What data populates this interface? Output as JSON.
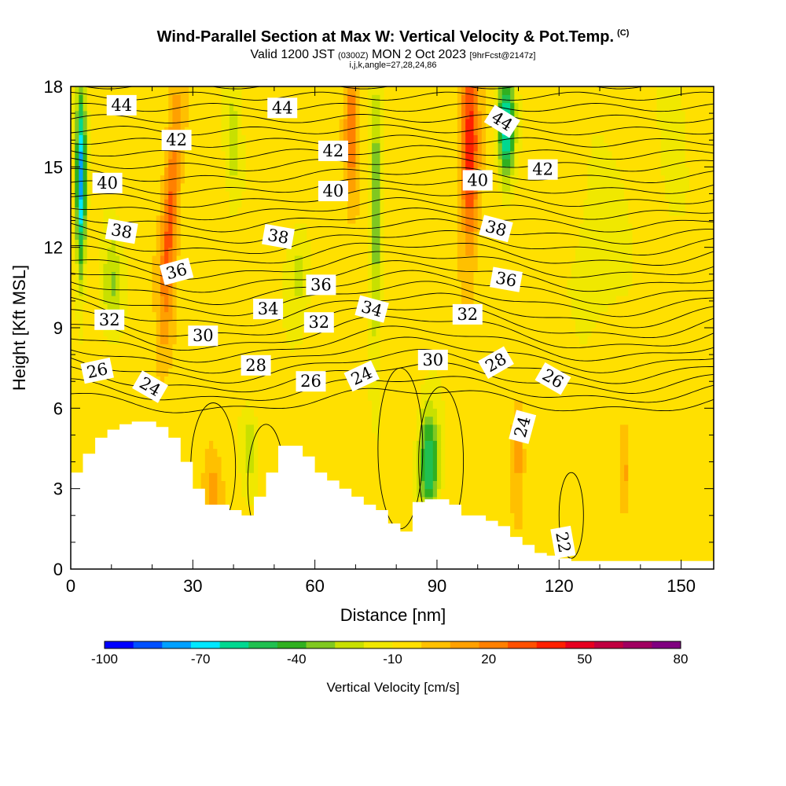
{
  "header": {
    "title": "Wind-Parallel Section at Max W: Vertical Velocity & Pot.Temp.",
    "copyright": "(C)",
    "valid_a": "Valid 1200 JST",
    "valid_b": "(0300Z)",
    "valid_c": "MON 2 Oct 2023",
    "valid_d": "[9hrFcst@2147z]",
    "grid_info": "i,j,k,angle=27,28,24,86"
  },
  "colors": {
    "frame": "#000000",
    "terrain": "#ffffff",
    "contour": "#000000"
  },
  "chart_data": {
    "type": "heatmap",
    "xlabel": "Distance [nm]",
    "ylabel": "Height [Kft MSL]",
    "xlim": [
      0,
      158
    ],
    "ylim": [
      0,
      18
    ],
    "x_ticks": [
      0,
      30,
      60,
      90,
      120,
      150
    ],
    "y_ticks": [
      0,
      3,
      6,
      9,
      12,
      15,
      18
    ],
    "colorbar": {
      "label": "Vertical Velocity [cm/s]",
      "min": -100,
      "max": 80,
      "tick_values": [
        -100,
        -70,
        -40,
        -10,
        20,
        50,
        80
      ],
      "bin_width": 10,
      "colors": [
        "#0000ff",
        "#0050ff",
        "#00a0ff",
        "#00e8ff",
        "#00d890",
        "#20c050",
        "#30b020",
        "#80c820",
        "#c8e000",
        "#f0e800",
        "#ffe000",
        "#ffc000",
        "#ffa000",
        "#ff8000",
        "#ff5000",
        "#ff2000",
        "#e80020",
        "#c00040",
        "#a00060",
        "#800080"
      ]
    },
    "terrain_profile": {
      "x": [
        0,
        3,
        6,
        9,
        12,
        15,
        18,
        21,
        24,
        27,
        30,
        33,
        36,
        39,
        42,
        45,
        48,
        51,
        54,
        57,
        60,
        63,
        66,
        69,
        72,
        75,
        78,
        81,
        84,
        87,
        90,
        93,
        96,
        99,
        102,
        105,
        108,
        111,
        114,
        117,
        120,
        123,
        126,
        129,
        132,
        158
      ],
      "y": [
        3.6,
        4.3,
        4.9,
        5.2,
        5.4,
        5.5,
        5.5,
        5.3,
        4.9,
        4.0,
        3.0,
        2.4,
        2.4,
        2.2,
        2.0,
        2.7,
        3.6,
        4.6,
        4.6,
        4.2,
        3.6,
        3.3,
        3.0,
        2.7,
        2.4,
        2.2,
        1.7,
        1.4,
        2.5,
        2.6,
        2.6,
        2.4,
        2.0,
        2.0,
        1.8,
        1.6,
        1.2,
        0.9,
        0.6,
        0.5,
        0.4,
        0.3,
        0.3,
        0.3,
        0.3,
        0.3
      ]
    },
    "theta_contour_labels": [
      {
        "text": "44",
        "x": 12.5,
        "y": 17.3,
        "angle": 0
      },
      {
        "text": "44",
        "x": 52,
        "y": 17.2,
        "angle": 0
      },
      {
        "text": "44",
        "x": 106,
        "y": 16.7,
        "angle": 32
      },
      {
        "text": "42",
        "x": 26,
        "y": 16.0,
        "angle": 0
      },
      {
        "text": "42",
        "x": 64.5,
        "y": 15.6,
        "angle": 0
      },
      {
        "text": "42",
        "x": 116,
        "y": 14.9,
        "angle": 0
      },
      {
        "text": "40",
        "x": 9,
        "y": 14.4,
        "angle": 0
      },
      {
        "text": "40",
        "x": 64.5,
        "y": 14.1,
        "angle": 0
      },
      {
        "text": "40",
        "x": 100,
        "y": 14.5,
        "angle": 0
      },
      {
        "text": "38",
        "x": 12.5,
        "y": 12.6,
        "angle": 10
      },
      {
        "text": "38",
        "x": 51,
        "y": 12.4,
        "angle": 10
      },
      {
        "text": "38",
        "x": 104.5,
        "y": 12.7,
        "angle": 15
      },
      {
        "text": "36",
        "x": 26,
        "y": 11.1,
        "angle": -15
      },
      {
        "text": "36",
        "x": 61.5,
        "y": 10.6,
        "angle": 0
      },
      {
        "text": "36",
        "x": 107,
        "y": 10.8,
        "angle": 10
      },
      {
        "text": "34",
        "x": 48.5,
        "y": 9.7,
        "angle": 0
      },
      {
        "text": "34",
        "x": 74,
        "y": 9.7,
        "angle": 15
      },
      {
        "text": "32",
        "x": 9.5,
        "y": 9.3,
        "angle": 0
      },
      {
        "text": "32",
        "x": 61,
        "y": 9.2,
        "angle": 0
      },
      {
        "text": "32",
        "x": 97.5,
        "y": 9.5,
        "angle": 0
      },
      {
        "text": "30",
        "x": 32.5,
        "y": 8.7,
        "angle": 0
      },
      {
        "text": "30",
        "x": 89,
        "y": 7.8,
        "angle": 0
      },
      {
        "text": "28",
        "x": 45.5,
        "y": 7.6,
        "angle": 0
      },
      {
        "text": "28",
        "x": 104.5,
        "y": 7.7,
        "angle": -30
      },
      {
        "text": "26",
        "x": 6.5,
        "y": 7.4,
        "angle": -12
      },
      {
        "text": "26",
        "x": 59,
        "y": 7.0,
        "angle": 0
      },
      {
        "text": "26",
        "x": 118.5,
        "y": 7.1,
        "angle": 30
      },
      {
        "text": "24",
        "x": 19.5,
        "y": 6.8,
        "angle": 30
      },
      {
        "text": "24",
        "x": 71.5,
        "y": 7.2,
        "angle": -25
      },
      {
        "text": "24",
        "x": 111,
        "y": 5.3,
        "angle": -75
      },
      {
        "text": "22",
        "x": 121,
        "y": 1.0,
        "angle": 80
      }
    ]
  }
}
